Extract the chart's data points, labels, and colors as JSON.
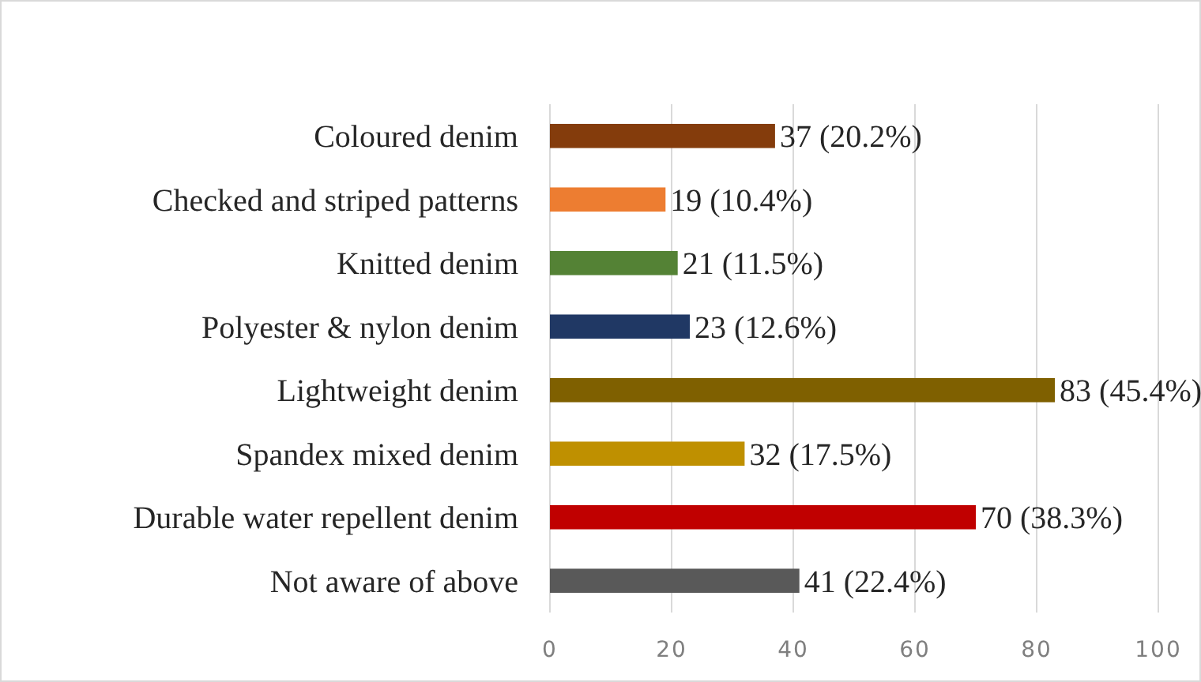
{
  "chart_data": {
    "type": "bar",
    "orientation": "horizontal",
    "categories": [
      "Coloured denim",
      "Checked and striped patterns",
      "Knitted denim",
      "Polyester & nylon denim",
      "Lightweight denim",
      "Spandex mixed denim",
      "Durable water repellent denim",
      "Not aware of above"
    ],
    "values": [
      37,
      19,
      21,
      23,
      83,
      32,
      70,
      41
    ],
    "colors": [
      "#843c0c",
      "#ed7d31",
      "#548235",
      "#203864",
      "#7f6000",
      "#bf9000",
      "#c00000",
      "#595959"
    ],
    "value_labels": [
      "37 (20.2%)",
      "19 (10.4%)",
      "21 (11.5%)",
      "23 (12.6%)",
      "83 (45.4%)",
      "32 (17.5%)",
      "70 (38.3%)",
      "41 (22.4%)"
    ],
    "xlim": [
      0,
      100
    ],
    "xticks": [
      0,
      20,
      40,
      60,
      80,
      100
    ],
    "grid": "x"
  }
}
